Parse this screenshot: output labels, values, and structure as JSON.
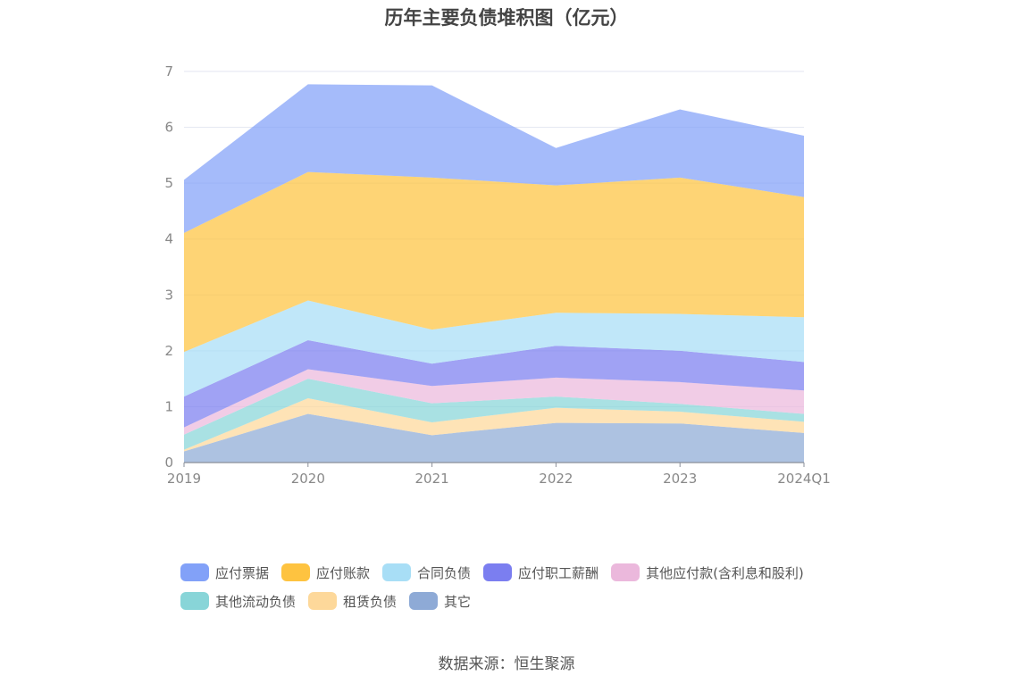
{
  "title": "历年主要负债堆积图（亿元）",
  "source": "数据来源：恒生聚源",
  "chart_data": {
    "type": "area",
    "stacked": true,
    "categories": [
      "2019",
      "2020",
      "2021",
      "2022",
      "2023",
      "2024Q1"
    ],
    "ylim": [
      0,
      7
    ],
    "yticks": [
      "0",
      "1",
      "2",
      "3",
      "4",
      "5",
      "6",
      "7"
    ],
    "grid": true,
    "legend_position": "bottom",
    "series": [
      {
        "name": "其它",
        "color": "#8eaad6",
        "values": [
          0.2,
          0.87,
          0.49,
          0.71,
          0.7,
          0.53
        ]
      },
      {
        "name": "租赁负债",
        "color": "#fdd89a",
        "values": [
          0.03,
          0.28,
          0.23,
          0.27,
          0.21,
          0.2
        ]
      },
      {
        "name": "其他流动负债",
        "color": "#88d5d8",
        "values": [
          0.27,
          0.35,
          0.34,
          0.2,
          0.14,
          0.14
        ]
      },
      {
        "name": "其他应付款(含利息和股利)",
        "color": "#ebb8dc",
        "values": [
          0.13,
          0.17,
          0.31,
          0.34,
          0.39,
          0.42
        ]
      },
      {
        "name": "应付职工薪酬",
        "color": "#7b7ef0",
        "values": [
          0.55,
          0.52,
          0.4,
          0.57,
          0.56,
          0.51
        ]
      },
      {
        "name": "合同负债",
        "color": "#a8def6",
        "values": [
          0.8,
          0.71,
          0.61,
          0.59,
          0.66,
          0.8
        ]
      },
      {
        "name": "应付账款",
        "color": "#fec340",
        "values": [
          2.13,
          2.3,
          2.72,
          2.28,
          2.44,
          2.15
        ]
      },
      {
        "name": "应付票据",
        "color": "#82a1f8",
        "values": [
          0.95,
          1.57,
          1.65,
          0.67,
          1.22,
          1.1
        ]
      }
    ],
    "legend_order": [
      "应付票据",
      "应付账款",
      "合同负债",
      "应付职工薪酬",
      "其他应付款(含利息和股利)",
      "其他流动负债",
      "租赁负债",
      "其它"
    ]
  }
}
